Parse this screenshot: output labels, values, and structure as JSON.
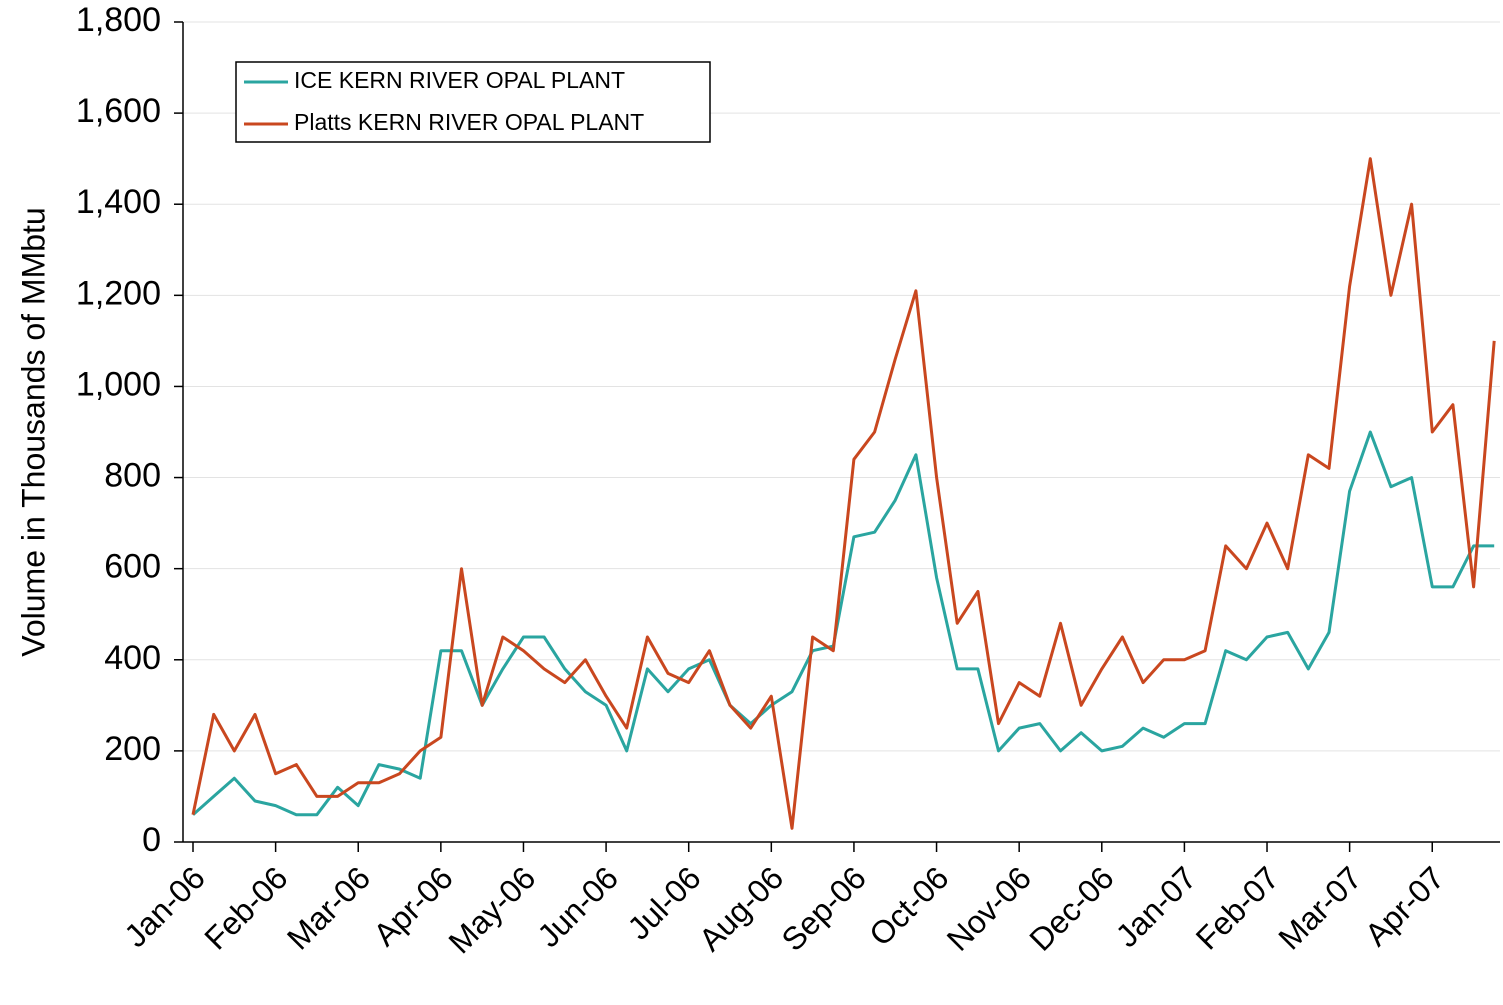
{
  "chart_data": {
    "type": "line",
    "y_label": "Volume in Thousands of MMbtu",
    "x": [
      0,
      0.25,
      0.5,
      0.75,
      1,
      1.25,
      1.5,
      1.75,
      2,
      2.25,
      2.5,
      2.75,
      3,
      3.25,
      3.5,
      3.75,
      4,
      4.25,
      4.5,
      4.75,
      5,
      5.25,
      5.5,
      5.75,
      6,
      6.25,
      6.5,
      6.75,
      7,
      7.25,
      7.5,
      7.75,
      8,
      8.25,
      8.5,
      8.75,
      9,
      9.25,
      9.5,
      9.75,
      10,
      10.25,
      10.5,
      10.75,
      11,
      11.25,
      11.5,
      11.75,
      12,
      12.25,
      12.5,
      12.75,
      13,
      13.25,
      13.5,
      13.75,
      14,
      14.25,
      14.5,
      14.75,
      15,
      15.25,
      15.5,
      15.75
    ],
    "series": [
      {
        "name": "ICE KERN RIVER OPAL PLANT",
        "color": "#2aa5a0",
        "values": [
          60,
          100,
          140,
          90,
          80,
          60,
          60,
          120,
          80,
          170,
          160,
          140,
          420,
          420,
          300,
          380,
          450,
          450,
          380,
          330,
          300,
          200,
          380,
          330,
          380,
          400,
          300,
          260,
          300,
          330,
          420,
          430,
          670,
          680,
          750,
          850,
          580,
          380,
          380,
          200,
          250,
          260,
          200,
          240,
          200,
          210,
          250,
          230,
          260,
          260,
          420,
          400,
          450,
          460,
          380,
          460,
          770,
          900,
          780,
          800,
          560,
          560,
          650,
          650
        ]
      },
      {
        "name": "Platts KERN RIVER OPAL PLANT",
        "color": "#c9471f",
        "values": [
          60,
          280,
          200,
          280,
          150,
          170,
          100,
          100,
          130,
          130,
          150,
          200,
          230,
          600,
          300,
          450,
          420,
          380,
          350,
          400,
          320,
          250,
          450,
          370,
          350,
          420,
          300,
          250,
          320,
          30,
          450,
          420,
          840,
          900,
          1060,
          1210,
          800,
          480,
          550,
          260,
          350,
          320,
          480,
          300,
          380,
          450,
          350,
          400,
          400,
          420,
          650,
          600,
          700,
          600,
          850,
          820,
          1220,
          1500,
          1200,
          1400,
          900,
          960,
          560,
          1100
        ]
      }
    ],
    "xlim": [
      0,
      15.82
    ],
    "xticks": [
      {
        "value": 0,
        "label": "Jan-06"
      },
      {
        "value": 1,
        "label": "Feb-06"
      },
      {
        "value": 2,
        "label": "Mar-06"
      },
      {
        "value": 3,
        "label": "Apr-06"
      },
      {
        "value": 4,
        "label": "May-06"
      },
      {
        "value": 5,
        "label": "Jun-06"
      },
      {
        "value": 6,
        "label": "Jul-06"
      },
      {
        "value": 7,
        "label": "Aug-06"
      },
      {
        "value": 8,
        "label": "Sep-06"
      },
      {
        "value": 9,
        "label": "Oct-06"
      },
      {
        "value": 10,
        "label": "Nov-06"
      },
      {
        "value": 11,
        "label": "Dec-06"
      },
      {
        "value": 12,
        "label": "Jan-07"
      },
      {
        "value": 13,
        "label": "Feb-07"
      },
      {
        "value": 14,
        "label": "Mar-07"
      },
      {
        "value": 15,
        "label": "Apr-07"
      }
    ],
    "ylim": [
      0,
      1800
    ],
    "yticks": [
      0,
      200,
      400,
      600,
      800,
      {
        "value": 1000,
        "label": "1,000"
      },
      {
        "value": 1200,
        "label": "1,200"
      },
      {
        "value": 1400,
        "label": "1,400"
      },
      {
        "value": 1600,
        "label": "1,600"
      },
      {
        "value": 1800,
        "label": "1,800"
      }
    ],
    "grid": true,
    "legend": "upper-left"
  }
}
